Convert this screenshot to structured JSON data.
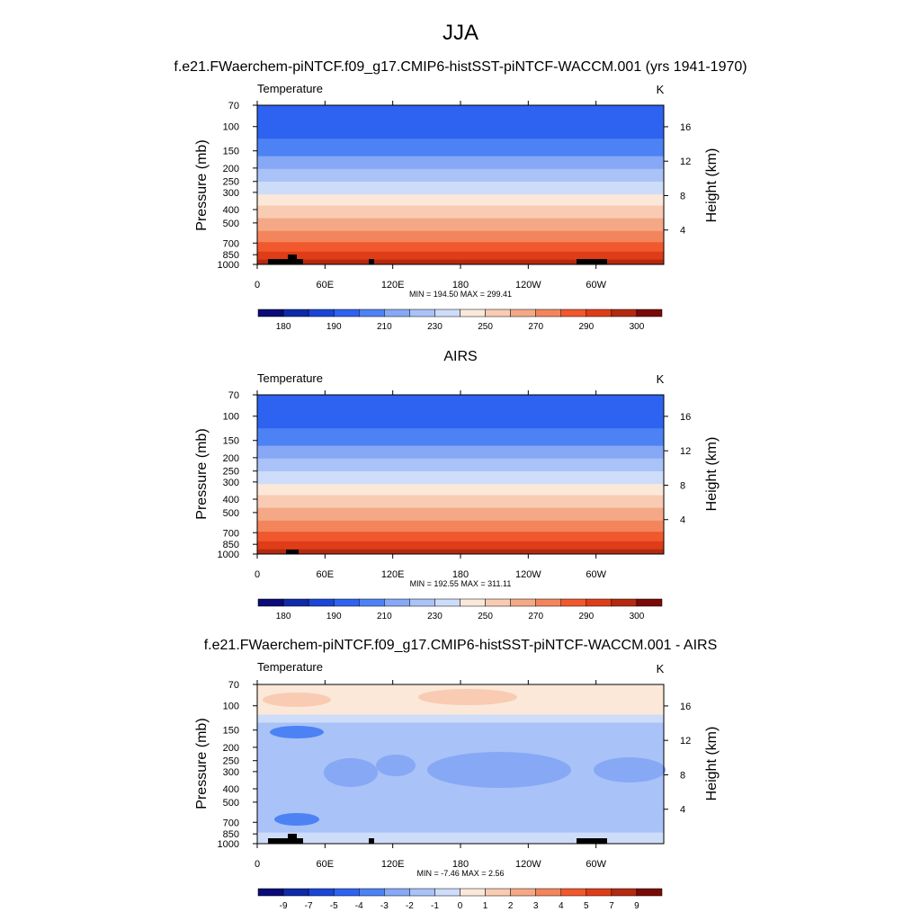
{
  "figure": {
    "season_title": "JJA",
    "model_title": "f.e21.FWaerchem-piNTCF.f09_g17.CMIP6-histSST-piNTCF-WACCM.001 (yrs 1941-1970)"
  },
  "chart_data": [
    {
      "type": "heatmap",
      "id": "model",
      "subtitle": "",
      "variable_label": "Temperature",
      "units_label": "K",
      "ylabel": "Pressure (mb)",
      "ylabel_right": "Height (km)",
      "xticks": [
        "0",
        "60E",
        "120E",
        "180",
        "120W",
        "60W"
      ],
      "xtick_lon": [
        0,
        60,
        120,
        180,
        240,
        300
      ],
      "xlim": [
        0,
        360
      ],
      "yticks": [
        "70",
        "100",
        "150",
        "200",
        "250",
        "300",
        "400",
        "500",
        "700",
        "850",
        "1000"
      ],
      "ylim_mb": [
        70,
        1000
      ],
      "yticks_right": [
        "16",
        "12",
        "8",
        "4"
      ],
      "stats_text": "MIN = 194.50  MAX = 299.41",
      "min": 194.5,
      "max": 299.41,
      "colorbar_labels": [
        "180",
        "190",
        "210",
        "230",
        "250",
        "270",
        "290",
        "300"
      ],
      "colorbar_colors": [
        "#0a0a78",
        "#0e2aa8",
        "#1a45d6",
        "#2e62f0",
        "#4d82f5",
        "#86a8f5",
        "#a9c2f7",
        "#cddcf8",
        "#fbe8d8",
        "#f8cbb2",
        "#f5a886",
        "#f3855c",
        "#f1582d",
        "#de3d18",
        "#b32a10",
        "#7a0a05"
      ],
      "band_colors_top_to_bottom": [
        "#2e62f0",
        "#2e62f0",
        "#4d82f5",
        "#86a8f5",
        "#a9c2f7",
        "#cddcf8",
        "#fbe8d8",
        "#f8cbb2",
        "#f5a886",
        "#f3855c",
        "#f1582d",
        "#de3d18",
        "#b32a10"
      ],
      "band_fraction_edges": [
        0,
        0.04,
        0.21,
        0.32,
        0.4,
        0.48,
        0.56,
        0.63,
        0.71,
        0.79,
        0.86,
        0.92,
        0.97,
        1
      ]
    },
    {
      "type": "heatmap",
      "id": "obs",
      "subtitle": "AIRS",
      "variable_label": "Temperature",
      "units_label": "K",
      "ylabel": "Pressure (mb)",
      "ylabel_right": "Height (km)",
      "xticks": [
        "0",
        "60E",
        "120E",
        "180",
        "120W",
        "60W"
      ],
      "xtick_lon": [
        0,
        60,
        120,
        180,
        240,
        300
      ],
      "xlim": [
        0,
        360
      ],
      "yticks": [
        "70",
        "100",
        "150",
        "200",
        "250",
        "300",
        "400",
        "500",
        "700",
        "850",
        "1000"
      ],
      "ylim_mb": [
        70,
        1000
      ],
      "yticks_right": [
        "16",
        "12",
        "8",
        "4"
      ],
      "stats_text": "MIN = 192.55  MAX = 311.11",
      "min": 192.55,
      "max": 311.11,
      "colorbar_labels": [
        "180",
        "190",
        "210",
        "230",
        "250",
        "270",
        "290",
        "300"
      ],
      "colorbar_colors": [
        "#0a0a78",
        "#0e2aa8",
        "#1a45d6",
        "#2e62f0",
        "#4d82f5",
        "#86a8f5",
        "#a9c2f7",
        "#cddcf8",
        "#fbe8d8",
        "#f8cbb2",
        "#f5a886",
        "#f3855c",
        "#f1582d",
        "#de3d18",
        "#b32a10",
        "#7a0a05"
      ],
      "band_colors_top_to_bottom": [
        "#2e62f0",
        "#2e62f0",
        "#4d82f5",
        "#86a8f5",
        "#a9c2f7",
        "#cddcf8",
        "#fbe8d8",
        "#f8cbb2",
        "#f5a886",
        "#f3855c",
        "#f1582d",
        "#de3d18",
        "#b32a10"
      ],
      "band_fraction_edges": [
        0,
        0.04,
        0.21,
        0.32,
        0.4,
        0.48,
        0.56,
        0.63,
        0.71,
        0.79,
        0.86,
        0.92,
        0.97,
        1
      ]
    },
    {
      "type": "heatmap",
      "id": "diff",
      "subtitle": "f.e21.FWaerchem-piNTCF.f09_g17.CMIP6-histSST-piNTCF-WACCM.001 - AIRS",
      "variable_label": "Temperature",
      "units_label": "K",
      "ylabel": "Pressure (mb)",
      "ylabel_right": "Height (km)",
      "xticks": [
        "0",
        "60E",
        "120E",
        "180",
        "120W",
        "60W"
      ],
      "xtick_lon": [
        0,
        60,
        120,
        180,
        240,
        300
      ],
      "xlim": [
        0,
        360
      ],
      "yticks": [
        "70",
        "100",
        "150",
        "200",
        "250",
        "300",
        "400",
        "500",
        "700",
        "850",
        "1000"
      ],
      "ylim_mb": [
        70,
        1000
      ],
      "yticks_right": [
        "16",
        "12",
        "8",
        "4"
      ],
      "stats_text": "MIN =  -7.46  MAX =   2.56",
      "min": -7.46,
      "max": 2.56,
      "colorbar_labels": [
        "-9",
        "-7",
        "-5",
        "-4",
        "-3",
        "-2",
        "-1",
        "0",
        "1",
        "2",
        "3",
        "4",
        "5",
        "7",
        "9"
      ],
      "colorbar_colors": [
        "#0a0a78",
        "#0e2aa8",
        "#1a45d6",
        "#2e62f0",
        "#4d82f5",
        "#86a8f5",
        "#a9c2f7",
        "#cddcf8",
        "#fbe8d8",
        "#f8cbb2",
        "#f5a886",
        "#f3855c",
        "#f1582d",
        "#de3d18",
        "#b32a10",
        "#7a0a05"
      ],
      "band_colors_top_to_bottom": [
        "#fbe8d8",
        "#cddcf8",
        "#a9c2f7",
        "#a9c2f7",
        "#a9c2f7",
        "#a9c2f7",
        "#a9c2f7",
        "#cddcf8"
      ],
      "band_fraction_edges": [
        0,
        0.19,
        0.24,
        0.4,
        0.6,
        0.75,
        0.85,
        0.93,
        1
      ]
    }
  ]
}
